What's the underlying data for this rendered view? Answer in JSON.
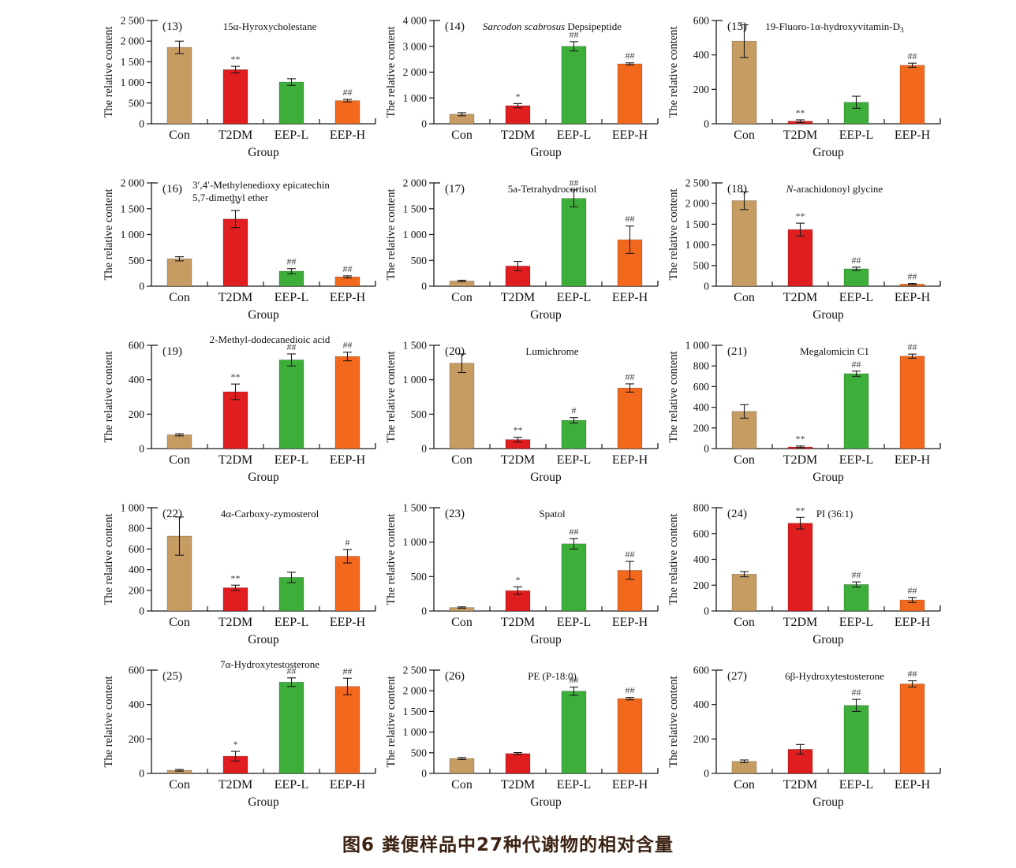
{
  "caption": "图6  粪便样品中27种代谢物的相对含量",
  "caption_color": "#3c2313",
  "shared": {
    "ylabel": "The relative content",
    "xlabel": "Group",
    "categories": [
      "Con",
      "T2DM",
      "EEP-L",
      "EEP-H"
    ],
    "bar_colors": [
      "#c69c62",
      "#e01e20",
      "#3eae3a",
      "#f2691d"
    ],
    "axis_color": "#1a1a1a",
    "sig_color": "#444444"
  },
  "chart_data": [
    {
      "type": "bar",
      "panel": "(13)",
      "title": "15α-Hyroxycholestane",
      "ymax": 2500,
      "yticks": [
        0,
        500,
        1000,
        1500,
        2000,
        2500
      ],
      "values": [
        1850,
        1310,
        1010,
        560
      ],
      "errors": [
        150,
        80,
        80,
        30
      ],
      "sig": [
        "",
        "**",
        "",
        "##"
      ]
    },
    {
      "type": "bar",
      "panel": "(14)",
      "title_parts": [
        {
          "text": "Sarcodon scabrosus",
          "italic": true
        },
        {
          "text": " Depsipeptide"
        }
      ],
      "ymax": 4000,
      "yticks": [
        0,
        1000,
        2000,
        3000,
        4000
      ],
      "values": [
        370,
        700,
        3000,
        2320
      ],
      "errors": [
        60,
        80,
        180,
        40
      ],
      "sig": [
        "",
        "*",
        "##",
        "##"
      ]
    },
    {
      "type": "bar",
      "panel": "(15)",
      "title_parts": [
        {
          "text": "19-Fluoro-1α-hydroxyvitamin-D"
        },
        {
          "text": "3",
          "sub": true
        }
      ],
      "ymax": 600,
      "yticks": [
        0,
        200,
        400,
        600
      ],
      "values": [
        480,
        15,
        125,
        340
      ],
      "errors": [
        95,
        8,
        35,
        12
      ],
      "sig": [
        "",
        "**",
        "",
        "##"
      ]
    },
    {
      "type": "bar",
      "panel": "(16)",
      "title_lines": [
        "3′,4′-Methylenedioxy epicatechin",
        "5,7-dimethyl ether"
      ],
      "ymax": 2000,
      "yticks": [
        0,
        500,
        1000,
        1500,
        2000
      ],
      "values": [
        530,
        1300,
        290,
        180
      ],
      "errors": [
        40,
        165,
        50,
        20
      ],
      "sig": [
        "",
        "**",
        "##",
        "##"
      ]
    },
    {
      "type": "bar",
      "panel": "(17)",
      "title": "5a-Tetrahydrocortisol",
      "ymax": 2000,
      "yticks": [
        0,
        500,
        1000,
        1500,
        2000
      ],
      "values": [
        100,
        390,
        1700,
        900
      ],
      "errors": [
        15,
        90,
        165,
        265
      ],
      "sig": [
        "",
        "",
        "##",
        "##"
      ]
    },
    {
      "type": "bar",
      "panel": "(18)",
      "title_parts": [
        {
          "text": "N",
          "italic": true
        },
        {
          "text": "-arachidonoyl glycine"
        }
      ],
      "ymax": 2500,
      "yticks": [
        0,
        500,
        1000,
        1500,
        2000,
        2500
      ],
      "values": [
        2070,
        1370,
        420,
        50
      ],
      "errors": [
        215,
        155,
        40,
        15
      ],
      "sig": [
        "",
        "**",
        "##",
        "##"
      ]
    },
    {
      "type": "bar",
      "panel": "(19)",
      "title": "2-Methyl-dodecanedioic acid",
      "title_high": true,
      "ymax": 600,
      "yticks": [
        0,
        200,
        400,
        600
      ],
      "values": [
        80,
        330,
        515,
        535
      ],
      "errors": [
        6,
        45,
        35,
        25
      ],
      "sig": [
        "",
        "**",
        "##",
        "##"
      ]
    },
    {
      "type": "bar",
      "panel": "(20)",
      "title": "Lumichrome",
      "ymax": 1500,
      "yticks": [
        0,
        500,
        1000,
        1500
      ],
      "values": [
        1240,
        130,
        410,
        880
      ],
      "errors": [
        135,
        35,
        40,
        60
      ],
      "sig": [
        "",
        "**",
        "#",
        "##"
      ]
    },
    {
      "type": "bar",
      "panel": "(21)",
      "title": "Megalomicin C1",
      "ymax": 1000,
      "yticks": [
        0,
        200,
        400,
        600,
        800,
        1000
      ],
      "values": [
        360,
        15,
        725,
        895
      ],
      "errors": [
        65,
        10,
        25,
        20
      ],
      "sig": [
        "",
        "**",
        "##",
        "##"
      ]
    },
    {
      "type": "bar",
      "panel": "(22)",
      "title": "4α-Carboxy-zymosterol",
      "ymax": 1000,
      "yticks": [
        0,
        200,
        400,
        600,
        800,
        1000
      ],
      "values": [
        725,
        225,
        325,
        530
      ],
      "errors": [
        185,
        25,
        50,
        65
      ],
      "sig": [
        "",
        "**",
        "",
        "#"
      ]
    },
    {
      "type": "bar",
      "panel": "(23)",
      "title": "Spatol",
      "ymax": 1500,
      "yticks": [
        0,
        500,
        1000,
        1500
      ],
      "values": [
        50,
        295,
        975,
        590
      ],
      "errors": [
        10,
        55,
        75,
        130
      ],
      "sig": [
        "",
        "*",
        "##",
        "##"
      ]
    },
    {
      "type": "bar",
      "panel": "(24)",
      "title": "PI (36:1)",
      "ymax": 800,
      "yticks": [
        0,
        200,
        400,
        600,
        800
      ],
      "values": [
        285,
        680,
        205,
        85
      ],
      "errors": [
        20,
        45,
        20,
        20
      ],
      "sig": [
        "",
        "**",
        "##",
        "##"
      ]
    },
    {
      "type": "bar",
      "panel": "(25)",
      "title": "7α-Hydroxytestosterone",
      "title_high": true,
      "ymax": 600,
      "yticks": [
        0,
        200,
        400,
        600
      ],
      "values": [
        18,
        100,
        530,
        505
      ],
      "errors": [
        5,
        28,
        25,
        48
      ],
      "sig": [
        "",
        "*",
        "##",
        "##"
      ]
    },
    {
      "type": "bar",
      "panel": "(26)",
      "title": "PE (P-18:0)",
      "ymax": 2500,
      "yticks": [
        0,
        500,
        1000,
        1500,
        2000,
        2500
      ],
      "values": [
        360,
        480,
        1990,
        1810
      ],
      "errors": [
        25,
        25,
        100,
        30
      ],
      "sig": [
        "",
        "",
        "##",
        "##"
      ]
    },
    {
      "type": "bar",
      "panel": "(27)",
      "title": "6β-Hydroxytestosterone",
      "ymax": 600,
      "yticks": [
        0,
        200,
        400,
        600
      ],
      "values": [
        70,
        140,
        395,
        520
      ],
      "errors": [
        8,
        28,
        35,
        18
      ],
      "sig": [
        "",
        "",
        "##",
        "##"
      ]
    }
  ]
}
